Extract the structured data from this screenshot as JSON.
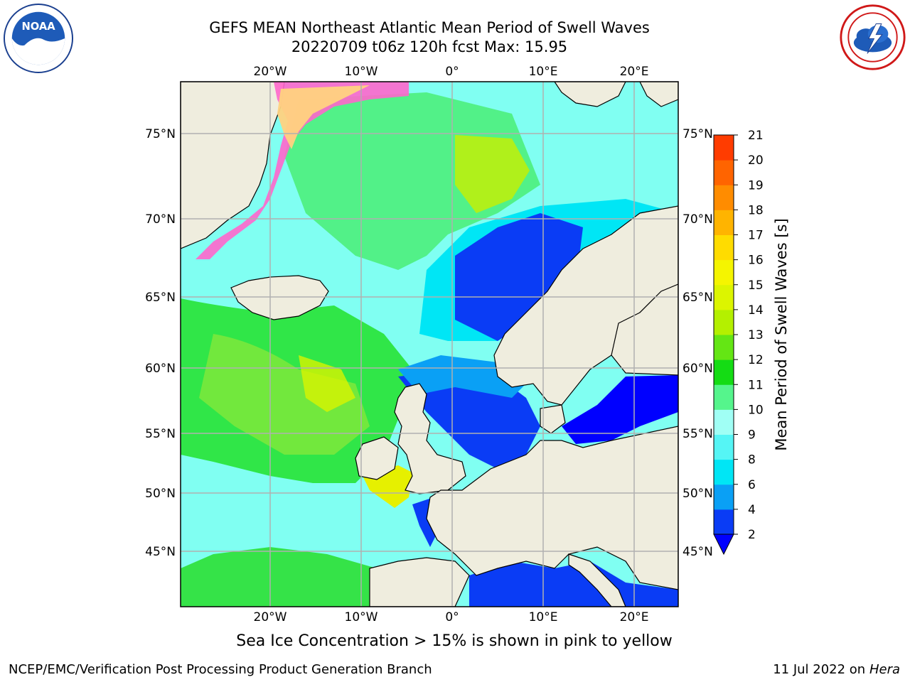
{
  "header": {
    "title_line1": "GEFS MEAN Northeast Atlantic Mean Period of Swell Waves",
    "title_line2": "20220709 t06z 120h fcst   Max: 15.95"
  },
  "logos": {
    "left": {
      "icon": "noaa-logo",
      "text": "NOAA",
      "ring_text": "NATIONAL OCEANIC AND ATMOSPHERIC ADMINISTRATION · U.S. DEPARTMENT OF COMMERCE"
    },
    "right": {
      "icon": "nws-logo",
      "ring_text": "NATIONAL WEATHER SERVICE"
    }
  },
  "map": {
    "lon_top_labels": [
      "20°W",
      "10°W",
      "0°",
      "10°E",
      "20°E"
    ],
    "lon_bottom_labels": [
      "20°W",
      "10°W",
      "0°",
      "10°E",
      "20°E"
    ],
    "lat_left_labels": [
      "75°N",
      "70°N",
      "65°N",
      "60°N",
      "55°N",
      "50°N",
      "45°N"
    ],
    "lat_right_labels": [
      "75°N",
      "70°N",
      "65°N",
      "60°N",
      "55°N",
      "50°N",
      "45°N"
    ],
    "land_color": "#efedde",
    "ice_colors": [
      "#ff66cc",
      "#ffd27f",
      "#ffff66"
    ]
  },
  "colorbar": {
    "label": "Mean Period of Swell Waves [s]",
    "ticks": [
      "2",
      "4",
      "6",
      "8",
      "9",
      "10",
      "11",
      "12",
      "13",
      "14",
      "15",
      "16",
      "17",
      "18",
      "19",
      "20",
      "21"
    ],
    "colors": [
      "#0a3cf5",
      "#0aa0f5",
      "#00e6f5",
      "#55f5f5",
      "#a0fff5",
      "#55f58c",
      "#14dc14",
      "#64e614",
      "#b4f000",
      "#dcf500",
      "#f5f500",
      "#ffdc00",
      "#ffb400",
      "#ff8c00",
      "#ff6400",
      "#ff3c00",
      "#ff0000"
    ],
    "under_color": "#0000ff"
  },
  "footer": {
    "footnote": "Sea Ice Concentration > 15% is shown in pink to yellow",
    "credit": "NCEP/EMC/Verification Post Processing Product Generation Branch",
    "date_prefix": "11 Jul 2022 on ",
    "machine": "Hera"
  }
}
